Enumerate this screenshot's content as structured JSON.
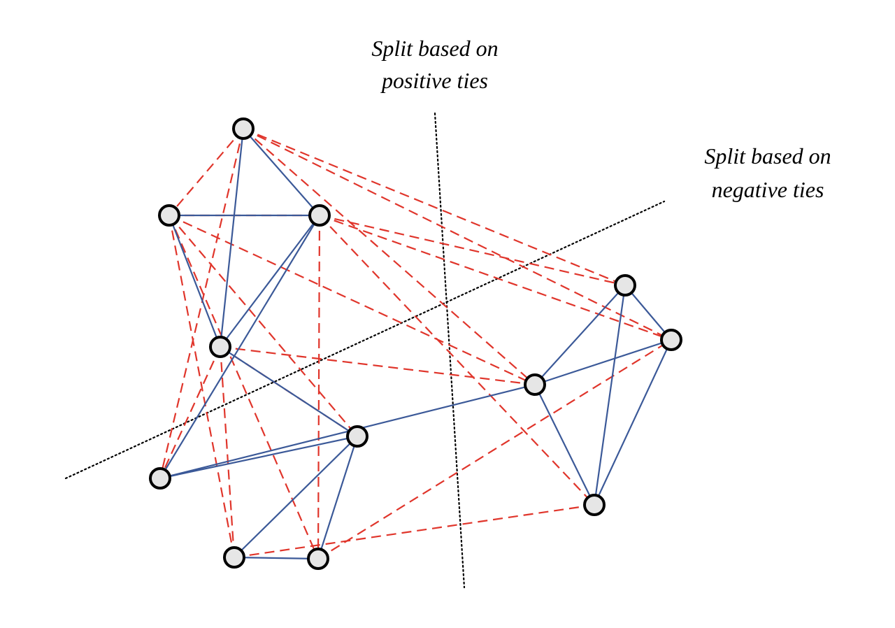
{
  "annotations": {
    "positive_split": {
      "line1": "Split based on",
      "line2": "positive ties"
    },
    "negative_split": {
      "line1": "Split based on",
      "line2": "negative ties"
    }
  },
  "colors": {
    "positive_edge": "#3b5998",
    "negative_edge": "#e0352b",
    "node_fill": "#e6e6e6",
    "node_stroke": "#000000",
    "split_line": "#000000"
  },
  "graph": {
    "node_count": 12,
    "positive_ties": [
      [
        0,
        2
      ],
      [
        0,
        3
      ],
      [
        1,
        2
      ],
      [
        1,
        3
      ],
      [
        2,
        3
      ],
      [
        2,
        4
      ],
      [
        3,
        5
      ],
      [
        4,
        5
      ],
      [
        5,
        6
      ],
      [
        5,
        7
      ],
      [
        4,
        8
      ],
      [
        6,
        7
      ],
      [
        8,
        10
      ],
      [
        8,
        9
      ],
      [
        8,
        11
      ],
      [
        9,
        10
      ],
      [
        10,
        11
      ],
      [
        9,
        11
      ]
    ],
    "negative_ties": [
      [
        0,
        1
      ],
      [
        0,
        4
      ],
      [
        0,
        9
      ],
      [
        0,
        10
      ],
      [
        1,
        2
      ],
      [
        1,
        5
      ],
      [
        1,
        6
      ],
      [
        1,
        7
      ],
      [
        2,
        9
      ],
      [
        2,
        10
      ],
      [
        2,
        11
      ],
      [
        2,
        7
      ],
      [
        3,
        4
      ],
      [
        3,
        8
      ],
      [
        3,
        5
      ],
      [
        3,
        6
      ],
      [
        6,
        11
      ],
      [
        7,
        10
      ],
      [
        1,
        8
      ],
      [
        0,
        8
      ]
    ]
  }
}
